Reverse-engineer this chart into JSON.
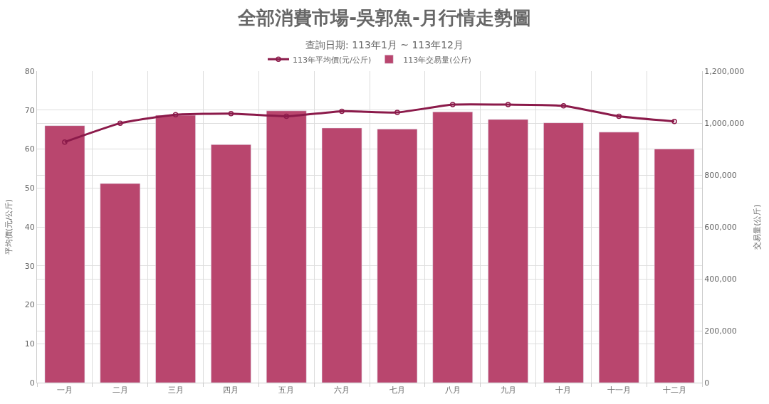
{
  "chart_data": {
    "type": "bar",
    "title": "全部消費市場-吳郭魚-月行情走勢圖",
    "subtitle": "查詢日期: 113年1月 ~ 113年12月",
    "ylabel": "平均價(元/公斤)",
    "y2label": "交易量(公斤)",
    "categories": [
      "一月",
      "二月",
      "三月",
      "四月",
      "五月",
      "六月",
      "七月",
      "八月",
      "九月",
      "十月",
      "十一月",
      "十二月"
    ],
    "series": [
      {
        "name": "113年平均價(元/公斤)",
        "type": "line",
        "color": "#8b1a4a",
        "marker": "circle",
        "line_style": "solid",
        "values": [
          61.8,
          66.6,
          68.8,
          69.1,
          68.4,
          69.7,
          69.4,
          71.4,
          71.4,
          71.1,
          68.4,
          67.1
        ]
      },
      {
        "name": "113年交易量(公斤)",
        "axis": "y2",
        "color": "#b9466e",
        "values": [
          990000,
          767000,
          1030000,
          917000,
          1047000,
          981000,
          977000,
          1043000,
          1014000,
          1001000,
          965000,
          900000
        ]
      }
    ],
    "ylim": [
      0,
      80
    ],
    "yticks": [
      0,
      10,
      20,
      30,
      40,
      50,
      60,
      70,
      80
    ],
    "y2lim": [
      0,
      1200000
    ],
    "y2ticks": [
      0,
      {
        "value": 200000,
        "label": "200,000"
      },
      {
        "value": 400000,
        "label": "400,000"
      },
      {
        "value": 600000,
        "label": "600,000"
      },
      {
        "value": 800000,
        "label": "800,000"
      },
      {
        "value": 1000000,
        "label": "1,000,000"
      },
      {
        "value": 1200000,
        "label": "1,200,000"
      }
    ],
    "grid": true,
    "legend": "top"
  }
}
